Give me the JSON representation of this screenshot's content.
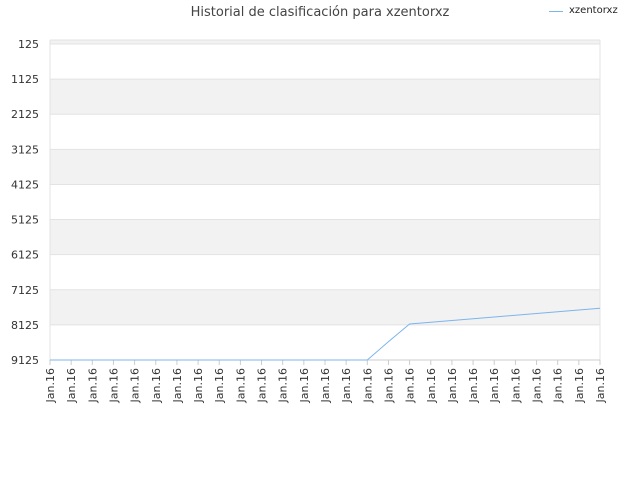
{
  "chart_data": {
    "type": "line",
    "title": "Historial de clasificación para xzentorxz",
    "xlabel": "",
    "ylabel": "",
    "y_reversed": true,
    "ylim": [
      125,
      9125
    ],
    "yticks": [
      125,
      1125,
      2125,
      3125,
      4125,
      5125,
      6125,
      7125,
      8125,
      9125
    ],
    "grid": true,
    "alternating_bands": true,
    "legend_position": "top-right",
    "categories": [
      "Jan.16",
      "Jan.16",
      "Jan.16",
      "Jan.16",
      "Jan.16",
      "Jan.16",
      "Jan.16",
      "Jan.16",
      "Jan.16",
      "Jan.16",
      "Jan.16",
      "Jan.16",
      "Jan.16",
      "Jan.16",
      "Jan.16",
      "Jan.16",
      "Jan.16",
      "Jan.16",
      "Jan.16",
      "Jan.16",
      "Jan.16",
      "Jan.16",
      "Jan.16",
      "Jan.16",
      "Jan.16",
      "Jan.16",
      "Jan.16"
    ],
    "series": [
      {
        "name": "xzentorxz",
        "color": "#7cb5ec",
        "values": [
          9125,
          9125,
          9125,
          9125,
          9125,
          9125,
          9125,
          9125,
          9125,
          9125,
          9125,
          9125,
          9125,
          9125,
          9125,
          9125,
          8600,
          8100,
          8050,
          8000,
          7950,
          7900,
          7850,
          7800,
          7750,
          7700,
          7650
        ]
      }
    ]
  }
}
